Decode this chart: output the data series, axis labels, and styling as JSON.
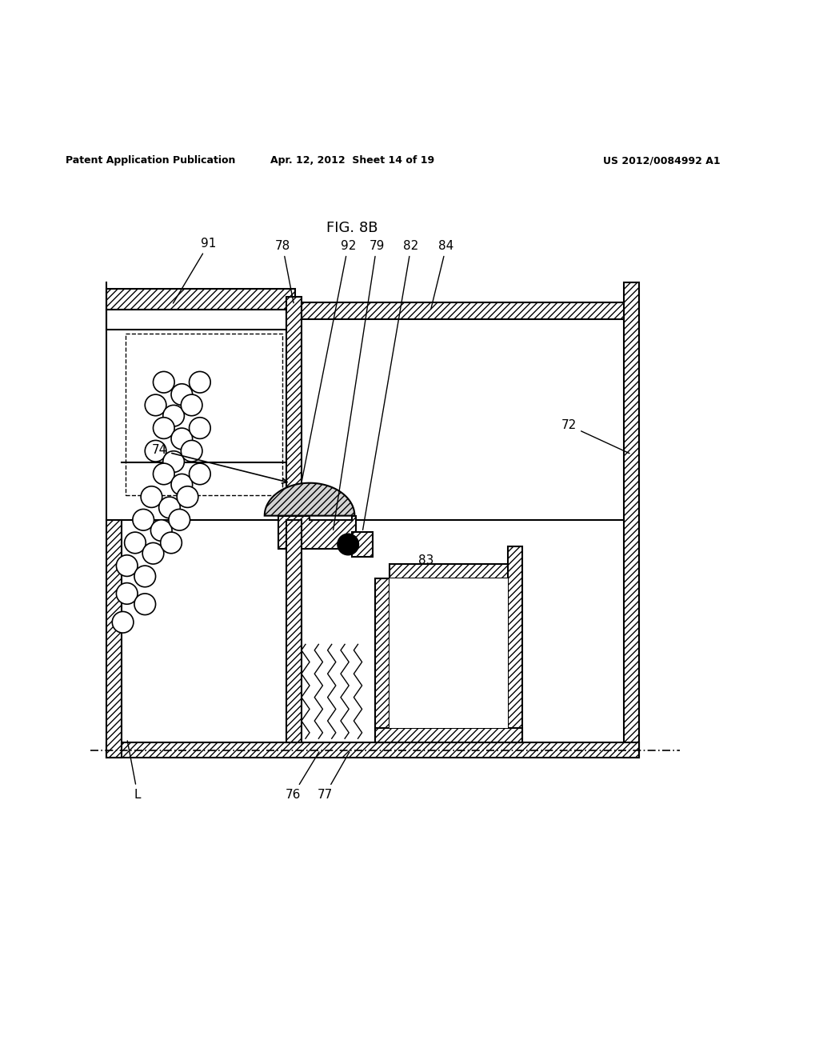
{
  "title": "FIG. 8B",
  "header_left": "Patent Application Publication",
  "header_center": "Apr. 12, 2012  Sheet 14 of 19",
  "header_right": "US 2012/0084992 A1",
  "bg_color": "#ffffff",
  "line_color": "#000000"
}
